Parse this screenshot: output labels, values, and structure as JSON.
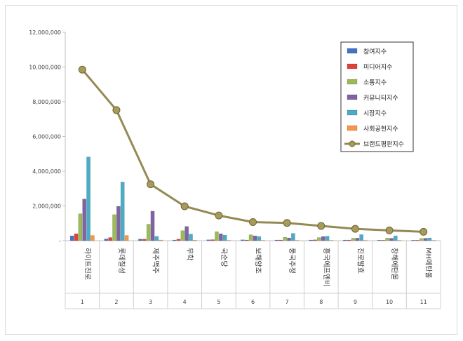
{
  "chart_data": {
    "type": "bar",
    "title": "",
    "xlabel": "",
    "ylabel": "",
    "ylim": [
      0,
      12000000
    ],
    "yticks": [
      0,
      2000000,
      4000000,
      6000000,
      8000000,
      10000000,
      12000000
    ],
    "ytick_labels": [
      "-",
      "2,000,000",
      "4,000,000",
      "6,000,000",
      "8,000,000",
      "10,000,000",
      "12,000,000"
    ],
    "categories": [
      "하이트진로",
      "롯데칠성",
      "제주맥주",
      "무학",
      "국순당",
      "보해양조",
      "풍국주정",
      "흥국에프엔비",
      "진로발효",
      "창해에탄올",
      "MH에탄올"
    ],
    "ranks": [
      "1",
      "2",
      "3",
      "4",
      "5",
      "6",
      "7",
      "8",
      "9",
      "10",
      "11"
    ],
    "legend_position": "top-right",
    "grid": false,
    "series": [
      {
        "name": "참여지수",
        "type": "bar",
        "color": "#4472c4",
        "values": [
          280000,
          100000,
          90000,
          40000,
          50000,
          50000,
          40000,
          40000,
          40000,
          30000,
          30000
        ]
      },
      {
        "name": "미디어지수",
        "type": "bar",
        "color": "#e0403a",
        "values": [
          400000,
          180000,
          90000,
          90000,
          60000,
          40000,
          40000,
          50000,
          40000,
          30000,
          30000
        ]
      },
      {
        "name": "소통지수",
        "type": "bar",
        "color": "#9bbb59",
        "values": [
          1550000,
          1500000,
          950000,
          580000,
          520000,
          340000,
          200000,
          180000,
          140000,
          150000,
          130000
        ]
      },
      {
        "name": "커뮤니티지수",
        "type": "bar",
        "color": "#8064a2",
        "values": [
          2400000,
          1980000,
          1700000,
          820000,
          400000,
          280000,
          160000,
          240000,
          150000,
          140000,
          140000
        ]
      },
      {
        "name": "시장지수",
        "type": "bar",
        "color": "#4bacc6",
        "values": [
          4820000,
          3380000,
          250000,
          380000,
          320000,
          240000,
          420000,
          260000,
          350000,
          280000,
          160000
        ]
      },
      {
        "name": "사회공헌지수",
        "type": "bar",
        "color": "#f79646",
        "values": [
          300000,
          300000,
          40000,
          30000,
          20000,
          20000,
          20000,
          20000,
          20000,
          20000,
          20000
        ]
      },
      {
        "name": "브랜드평판지수",
        "type": "line",
        "color": "#948a54",
        "values": [
          9850000,
          7520000,
          3250000,
          1980000,
          1450000,
          1070000,
          1020000,
          850000,
          680000,
          590000,
          510000
        ]
      }
    ]
  }
}
